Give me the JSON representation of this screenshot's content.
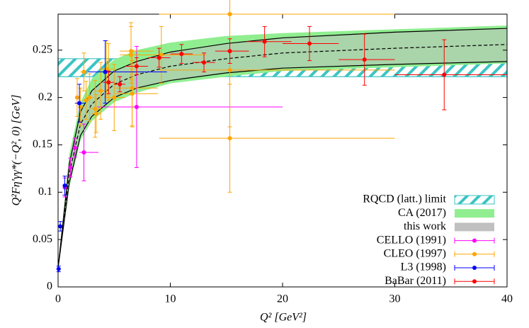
{
  "chart_data": {
    "type": "scatter",
    "xlabel": "Q² [GeV²]",
    "ylabel": "Q²Fη′γγ*(−Q², 0) [GeV]",
    "xlim": [
      0,
      40
    ],
    "ylim": [
      0,
      0.288
    ],
    "xticks": [
      0,
      10,
      20,
      30,
      40
    ],
    "yticks": [
      0,
      0.05,
      0.1,
      0.15,
      0.2,
      0.25
    ],
    "bands": [
      {
        "name": "RQCD (latt.) limit",
        "color": "#3cc4c4",
        "style": "hatch",
        "x": [
          0,
          40
        ],
        "lower": [
          0.222,
          0.222
        ],
        "upper": [
          0.241,
          0.241
        ]
      },
      {
        "name": "CA (2017)",
        "color": "#90ee90",
        "style": "fill",
        "x": [
          0,
          1,
          2,
          3,
          5,
          7,
          10,
          15,
          20,
          30,
          40
        ],
        "lower": [
          0.02,
          0.105,
          0.155,
          0.175,
          0.195,
          0.205,
          0.215,
          0.222,
          0.228,
          0.232,
          0.236
        ],
        "upper": [
          0.02,
          0.14,
          0.195,
          0.22,
          0.24,
          0.25,
          0.258,
          0.265,
          0.268,
          0.272,
          0.276
        ]
      },
      {
        "name": "this work",
        "color": "#c0c0c0",
        "style": "curves",
        "x": [
          0,
          1,
          2,
          3,
          5,
          7,
          10,
          15,
          20,
          30,
          40
        ],
        "lower": [
          0.02,
          0.11,
          0.16,
          0.18,
          0.2,
          0.21,
          0.218,
          0.226,
          0.231,
          0.235,
          0.238
        ],
        "upper": [
          0.02,
          0.13,
          0.185,
          0.207,
          0.228,
          0.238,
          0.248,
          0.257,
          0.263,
          0.269,
          0.273
        ],
        "center": [
          0.02,
          0.12,
          0.172,
          0.193,
          0.214,
          0.224,
          0.233,
          0.241,
          0.247,
          0.252,
          0.256
        ]
      }
    ],
    "series": [
      {
        "name": "CELLO (1991)",
        "color": "#ff00ff",
        "x": [
          0.6,
          1.1,
          1.5,
          2.3,
          7.0
        ],
        "values": [
          0.105,
          0.126,
          0.147,
          0.142,
          0.19
        ],
        "yerr": [
          0.01,
          0.01,
          0.01,
          0.03,
          0.064
        ],
        "xerr": [
          [
            0.1,
            0.1
          ],
          [
            0.2,
            0.2
          ],
          [
            0.2,
            0.3
          ],
          [
            0.4,
            1.3
          ],
          [
            3.5,
            13
          ]
        ]
      },
      {
        "name": "CLEO (1997)",
        "color": "#ffa500",
        "x": [
          1.7,
          2.0,
          2.3,
          2.5,
          2.8,
          3.3,
          3.4,
          3.8,
          4.3,
          4.5,
          5.0,
          6.5,
          6.5,
          6.6,
          6.6,
          9.2,
          15.3,
          15.3,
          15.3
        ],
        "values": [
          0.2,
          0.19,
          0.227,
          0.197,
          0.2,
          0.188,
          0.183,
          0.207,
          0.23,
          0.227,
          0.2,
          0.249,
          0.245,
          0.21,
          0.204,
          0.245,
          0.288,
          0.229,
          0.157
        ],
        "yerr": [
          0.02,
          0.02,
          0.02,
          0.02,
          0.025,
          0.03,
          0.02,
          0.03,
          0.03,
          0.03,
          0.035,
          0.03,
          0.03,
          0.04,
          0.035,
          0.03,
          0.06,
          0.06,
          0.057
        ],
        "xerr": [
          [
            0.2,
            0.2
          ],
          [
            0.2,
            0.3
          ],
          [
            0.3,
            0.3
          ],
          [
            0.3,
            0.3
          ],
          [
            0.3,
            0.4
          ],
          [
            0.4,
            0.4
          ],
          [
            0.4,
            0.4
          ],
          [
            0.5,
            0.7
          ],
          [
            0.5,
            0.7
          ],
          [
            0.5,
            0.7
          ],
          [
            0.7,
            1
          ],
          [
            1,
            2
          ],
          [
            1,
            2
          ],
          [
            1.5,
            2.3
          ],
          [
            1.5,
            2.3
          ],
          [
            2.5,
            4
          ],
          [
            6.3,
            14.7
          ],
          [
            6.3,
            14.7
          ],
          [
            6.3,
            14.7
          ]
        ]
      },
      {
        "name": "L3 (1998)",
        "color": "#0000ff",
        "x": [
          0.05,
          0.2,
          0.6,
          1.9,
          4.2
        ],
        "values": [
          0.019,
          0.064,
          0.107,
          0.194,
          0.227
        ],
        "yerr": [
          0.003,
          0.005,
          0.01,
          0.02,
          0.033
        ],
        "xerr": [
          [
            0.05,
            0.05
          ],
          [
            0.1,
            0.1
          ],
          [
            0.2,
            0.2
          ],
          [
            0.4,
            0.5
          ],
          [
            1.5,
            5.5
          ]
        ]
      },
      {
        "name": "BaBar (2011)",
        "color": "#ff0000",
        "x": [
          4.5,
          5.5,
          7,
          9,
          11,
          13,
          15.3,
          18.4,
          22.4,
          27.3,
          34.4
        ],
        "values": [
          0.216,
          0.214,
          0.233,
          0.242,
          0.246,
          0.237,
          0.249,
          0.259,
          0.257,
          0.24,
          0.224
        ],
        "yerr": [
          0.012,
          0.008,
          0.009,
          0.01,
          0.01,
          0.01,
          0.013,
          0.016,
          0.018,
          0.027,
          0.037
        ],
        "xerr": [
          [
            0.5,
            0.5
          ],
          [
            0.5,
            0.5
          ],
          [
            1,
            1
          ],
          [
            1,
            1
          ],
          [
            1,
            1
          ],
          [
            1,
            1
          ],
          [
            1.3,
            1.7
          ],
          [
            1.6,
            2.4
          ],
          [
            2.4,
            2.6
          ],
          [
            2.3,
            2.7
          ],
          [
            4.4,
            5.6
          ]
        ]
      }
    ]
  }
}
